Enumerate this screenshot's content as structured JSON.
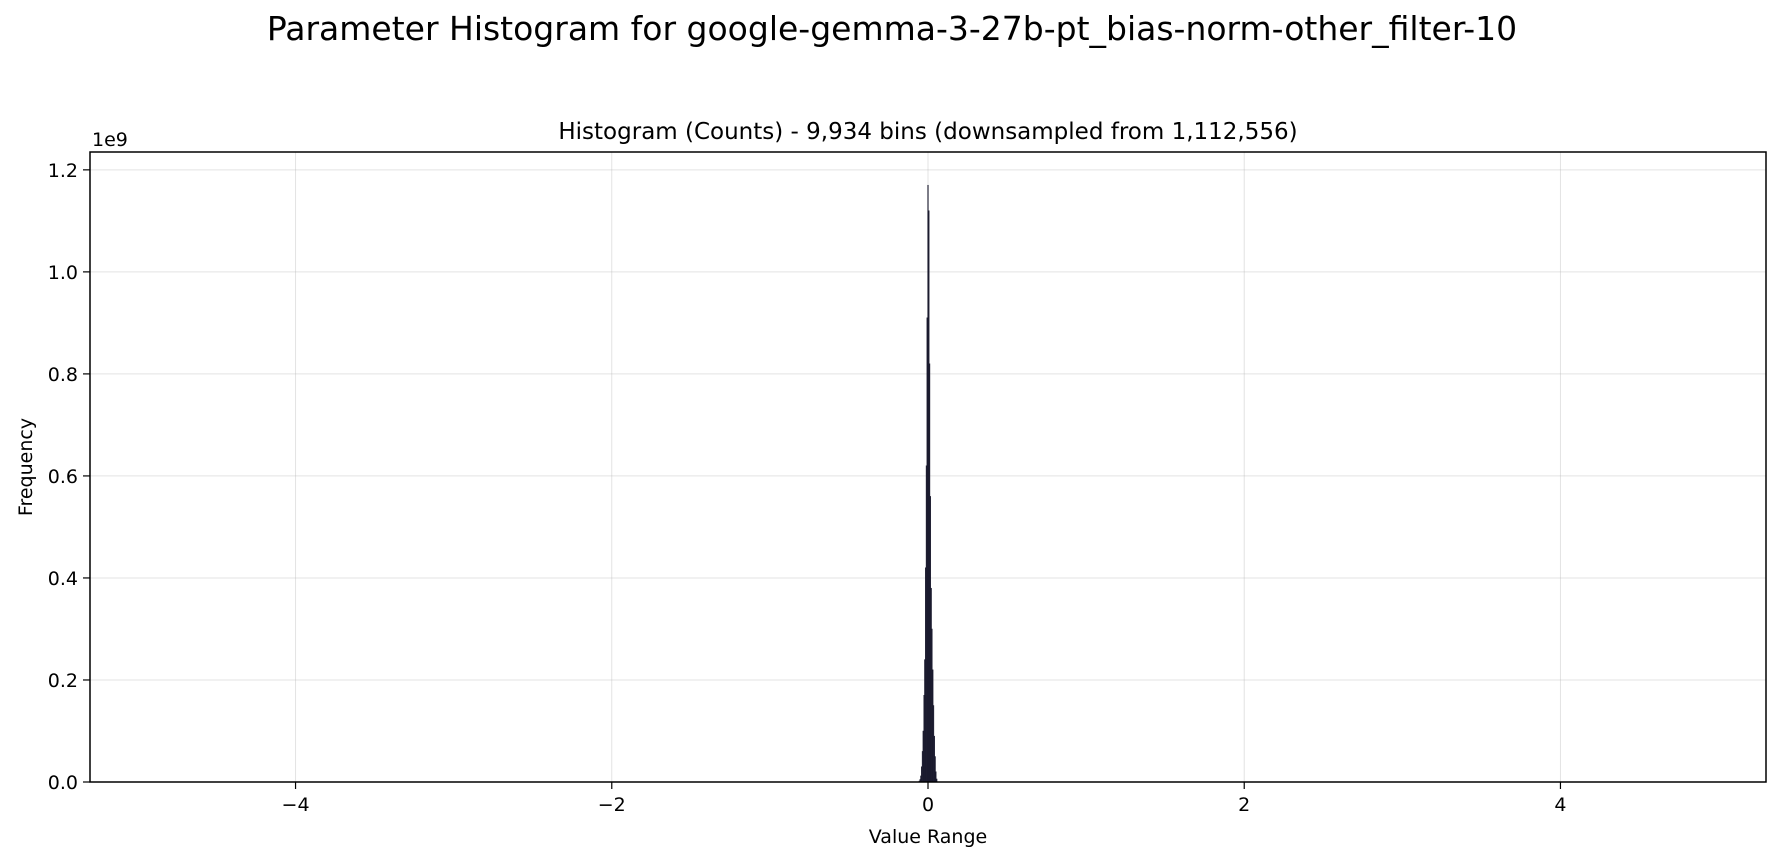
{
  "chart_data": {
    "type": "bar",
    "title": "Parameter Histogram for google-gemma-3-27b-pt_bias-norm-other_filter-10",
    "subtitle": "Histogram (Counts) - 9,934 bins (downsampled from 1,112,556)",
    "xlabel": "Value Range",
    "ylabel": "Frequency",
    "y_offset_label": "1e9",
    "xlim": [
      -5.3,
      5.3
    ],
    "ylim": [
      0,
      1.235
    ],
    "x_ticks": [
      -4,
      -2,
      0,
      2,
      4
    ],
    "x_tick_labels": [
      "−4",
      "−2",
      "0",
      "2",
      "4"
    ],
    "y_ticks": [
      0.0,
      0.2,
      0.4,
      0.6,
      0.8,
      1.0,
      1.2
    ],
    "y_tick_labels": [
      "0.0",
      "0.2",
      "0.4",
      "0.6",
      "0.8",
      "1.0",
      "1.2"
    ],
    "grid": true,
    "bar_color": "#1a1a2e",
    "bins": {
      "x": [
        -0.055,
        -0.05,
        -0.045,
        -0.04,
        -0.035,
        -0.03,
        -0.025,
        -0.02,
        -0.015,
        -0.01,
        -0.005,
        0.0,
        0.005,
        0.01,
        0.015,
        0.02,
        0.025,
        0.03,
        0.035,
        0.04,
        0.045,
        0.05,
        0.055
      ],
      "values": [
        0.002,
        0.005,
        0.012,
        0.03,
        0.06,
        0.1,
        0.17,
        0.24,
        0.42,
        0.62,
        0.91,
        1.17,
        1.12,
        0.82,
        0.56,
        0.38,
        0.3,
        0.22,
        0.15,
        0.09,
        0.05,
        0.02,
        0.006
      ]
    }
  }
}
